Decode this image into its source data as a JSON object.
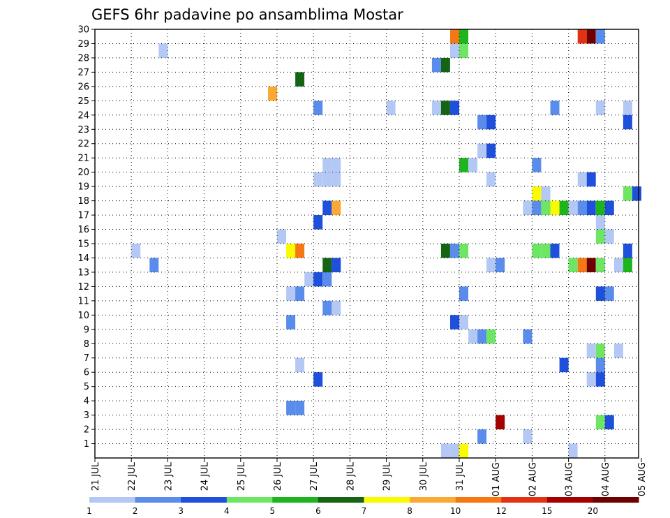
{
  "chart_data": {
    "type": "heatmap",
    "title": "GEFS 6hr padavine po ansamblima Mostar",
    "xlabel": "",
    "ylabel": "",
    "x_tick_labels": [
      "21 JUL",
      "22 JUL",
      "23 JUL",
      "24 JUL",
      "25 JUL",
      "26 JUL",
      "27 JUL",
      "28 JUL",
      "29 JUL",
      "30 JUL",
      "31 JUL",
      "01 AUG",
      "02 AUG",
      "03 AUG",
      "04 AUG",
      "05 AUG"
    ],
    "xlim_days": [
      0,
      15
    ],
    "y_tick_labels": [
      "1",
      "2",
      "3",
      "4",
      "5",
      "6",
      "7",
      "8",
      "9",
      "10",
      "11",
      "12",
      "13",
      "14",
      "15",
      "16",
      "17",
      "18",
      "19",
      "20",
      "21",
      "22",
      "23",
      "24",
      "25",
      "26",
      "27",
      "28",
      "29",
      "30"
    ],
    "ylim": [
      0,
      30
    ],
    "grid": true,
    "legend": {
      "placement": "bottom",
      "colors": [
        "#b4c8f5",
        "#5a8ceb",
        "#1e50dc",
        "#6ee664",
        "#1eb41e",
        "#146414",
        "#fafa00",
        "#faaa32",
        "#f57814",
        "#e13214",
        "#a50000",
        "#6e0000"
      ],
      "labels": [
        "1",
        "2",
        "3",
        "4",
        "5",
        "6",
        "7",
        "8",
        "10",
        "12",
        "15",
        "20"
      ]
    },
    "cells": [
      {
        "t": 9.5,
        "m": 0,
        "c": 0
      },
      {
        "t": 9.75,
        "m": 0,
        "c": 0
      },
      {
        "t": 10.0,
        "m": 0,
        "c": 6
      },
      {
        "t": 13.0,
        "m": 0,
        "c": 0
      },
      {
        "t": 10.5,
        "m": 1,
        "c": 1
      },
      {
        "t": 11.75,
        "m": 1,
        "c": 0
      },
      {
        "t": 11.0,
        "m": 2,
        "c": 10
      },
      {
        "t": 13.75,
        "m": 2,
        "c": 3
      },
      {
        "t": 14.0,
        "m": 2,
        "c": 2
      },
      {
        "t": 5.25,
        "m": 3,
        "c": 1
      },
      {
        "t": 5.5,
        "m": 3,
        "c": 1
      },
      {
        "t": 6.0,
        "m": 5,
        "c": 2
      },
      {
        "t": 13.5,
        "m": 5,
        "c": 0
      },
      {
        "t": 13.75,
        "m": 5,
        "c": 2
      },
      {
        "t": 5.5,
        "m": 6,
        "c": 0
      },
      {
        "t": 12.75,
        "m": 6,
        "c": 2
      },
      {
        "t": 13.75,
        "m": 6,
        "c": 1
      },
      {
        "t": 13.5,
        "m": 7,
        "c": 0
      },
      {
        "t": 13.75,
        "m": 7,
        "c": 3
      },
      {
        "t": 14.25,
        "m": 7,
        "c": 0
      },
      {
        "t": 10.25,
        "m": 8,
        "c": 0
      },
      {
        "t": 10.5,
        "m": 8,
        "c": 1
      },
      {
        "t": 10.75,
        "m": 8,
        "c": 3
      },
      {
        "t": 11.75,
        "m": 8,
        "c": 1
      },
      {
        "t": 5.25,
        "m": 9,
        "c": 1
      },
      {
        "t": 9.75,
        "m": 9,
        "c": 2
      },
      {
        "t": 10.0,
        "m": 9,
        "c": 0
      },
      {
        "t": 6.25,
        "m": 10,
        "c": 1
      },
      {
        "t": 6.5,
        "m": 10,
        "c": 0
      },
      {
        "t": 5.25,
        "m": 11,
        "c": 0
      },
      {
        "t": 5.5,
        "m": 11,
        "c": 1
      },
      {
        "t": 10.0,
        "m": 11,
        "c": 1
      },
      {
        "t": 13.75,
        "m": 11,
        "c": 2
      },
      {
        "t": 14.0,
        "m": 11,
        "c": 1
      },
      {
        "t": 5.75,
        "m": 12,
        "c": 0
      },
      {
        "t": 6.0,
        "m": 12,
        "c": 2
      },
      {
        "t": 6.25,
        "m": 12,
        "c": 1
      },
      {
        "t": 1.5,
        "m": 13,
        "c": 1
      },
      {
        "t": 6.25,
        "m": 13,
        "c": 5
      },
      {
        "t": 6.5,
        "m": 13,
        "c": 2
      },
      {
        "t": 10.75,
        "m": 13,
        "c": 0
      },
      {
        "t": 11.0,
        "m": 13,
        "c": 1
      },
      {
        "t": 13.0,
        "m": 13,
        "c": 3
      },
      {
        "t": 13.25,
        "m": 13,
        "c": 8
      },
      {
        "t": 13.5,
        "m": 13,
        "c": 11
      },
      {
        "t": 13.75,
        "m": 13,
        "c": 3
      },
      {
        "t": 14.25,
        "m": 13,
        "c": 0
      },
      {
        "t": 14.5,
        "m": 13,
        "c": 4
      },
      {
        "t": 1.0,
        "m": 14,
        "c": 0
      },
      {
        "t": 5.25,
        "m": 14,
        "c": 6
      },
      {
        "t": 5.5,
        "m": 14,
        "c": 8
      },
      {
        "t": 9.5,
        "m": 14,
        "c": 5
      },
      {
        "t": 9.75,
        "m": 14,
        "c": 1
      },
      {
        "t": 10.0,
        "m": 14,
        "c": 3
      },
      {
        "t": 12.0,
        "m": 14,
        "c": 3
      },
      {
        "t": 12.25,
        "m": 14,
        "c": 3
      },
      {
        "t": 12.5,
        "m": 14,
        "c": 2
      },
      {
        "t": 14.5,
        "m": 14,
        "c": 2
      },
      {
        "t": 5.0,
        "m": 15,
        "c": 0
      },
      {
        "t": 13.75,
        "m": 15,
        "c": 3
      },
      {
        "t": 14.0,
        "m": 15,
        "c": 0
      },
      {
        "t": 6.0,
        "m": 16,
        "c": 2
      },
      {
        "t": 13.75,
        "m": 16,
        "c": 0
      },
      {
        "t": 6.25,
        "m": 17,
        "c": 2
      },
      {
        "t": 6.5,
        "m": 17,
        "c": 7
      },
      {
        "t": 11.75,
        "m": 17,
        "c": 0
      },
      {
        "t": 12.0,
        "m": 17,
        "c": 1
      },
      {
        "t": 12.25,
        "m": 17,
        "c": 3
      },
      {
        "t": 12.5,
        "m": 17,
        "c": 6
      },
      {
        "t": 12.75,
        "m": 17,
        "c": 4
      },
      {
        "t": 13.0,
        "m": 17,
        "c": 0
      },
      {
        "t": 13.25,
        "m": 17,
        "c": 1
      },
      {
        "t": 13.5,
        "m": 17,
        "c": 2
      },
      {
        "t": 13.75,
        "m": 17,
        "c": 4
      },
      {
        "t": 14.0,
        "m": 17,
        "c": 2
      },
      {
        "t": 12.0,
        "m": 18,
        "c": 6
      },
      {
        "t": 12.25,
        "m": 18,
        "c": 0
      },
      {
        "t": 14.5,
        "m": 18,
        "c": 3
      },
      {
        "t": 14.75,
        "m": 18,
        "c": 2
      },
      {
        "t": 6.0,
        "m": 19,
        "c": 0
      },
      {
        "t": 6.25,
        "m": 19,
        "c": 0
      },
      {
        "t": 6.5,
        "m": 19,
        "c": 0
      },
      {
        "t": 10.75,
        "m": 19,
        "c": 0
      },
      {
        "t": 13.25,
        "m": 19,
        "c": 0
      },
      {
        "t": 13.5,
        "m": 19,
        "c": 2
      },
      {
        "t": 6.25,
        "m": 20,
        "c": 0
      },
      {
        "t": 6.5,
        "m": 20,
        "c": 0
      },
      {
        "t": 10.0,
        "m": 20,
        "c": 4
      },
      {
        "t": 10.25,
        "m": 20,
        "c": 0
      },
      {
        "t": 12.0,
        "m": 20,
        "c": 1
      },
      {
        "t": 10.5,
        "m": 21,
        "c": 0
      },
      {
        "t": 10.75,
        "m": 21,
        "c": 2
      },
      {
        "t": 10.5,
        "m": 23,
        "c": 1
      },
      {
        "t": 10.75,
        "m": 23,
        "c": 2
      },
      {
        "t": 14.5,
        "m": 23,
        "c": 2
      },
      {
        "t": 6.0,
        "m": 24,
        "c": 1
      },
      {
        "t": 8.0,
        "m": 24,
        "c": 0
      },
      {
        "t": 9.25,
        "m": 24,
        "c": 0
      },
      {
        "t": 9.5,
        "m": 24,
        "c": 5
      },
      {
        "t": 9.75,
        "m": 24,
        "c": 2
      },
      {
        "t": 12.5,
        "m": 24,
        "c": 1
      },
      {
        "t": 13.75,
        "m": 24,
        "c": 0
      },
      {
        "t": 14.5,
        "m": 24,
        "c": 0
      },
      {
        "t": 4.75,
        "m": 25,
        "c": 7
      },
      {
        "t": 5.5,
        "m": 26,
        "c": 5
      },
      {
        "t": 9.25,
        "m": 27,
        "c": 1
      },
      {
        "t": 9.5,
        "m": 27,
        "c": 5
      },
      {
        "t": 1.75,
        "m": 28,
        "c": 0
      },
      {
        "t": 9.75,
        "m": 28,
        "c": 0
      },
      {
        "t": 10.0,
        "m": 28,
        "c": 3
      },
      {
        "t": 9.75,
        "m": 29,
        "c": 8
      },
      {
        "t": 10.0,
        "m": 29,
        "c": 4
      },
      {
        "t": 13.25,
        "m": 29,
        "c": 9
      },
      {
        "t": 13.5,
        "m": 29,
        "c": 11
      },
      {
        "t": 13.75,
        "m": 29,
        "c": 1
      }
    ]
  }
}
